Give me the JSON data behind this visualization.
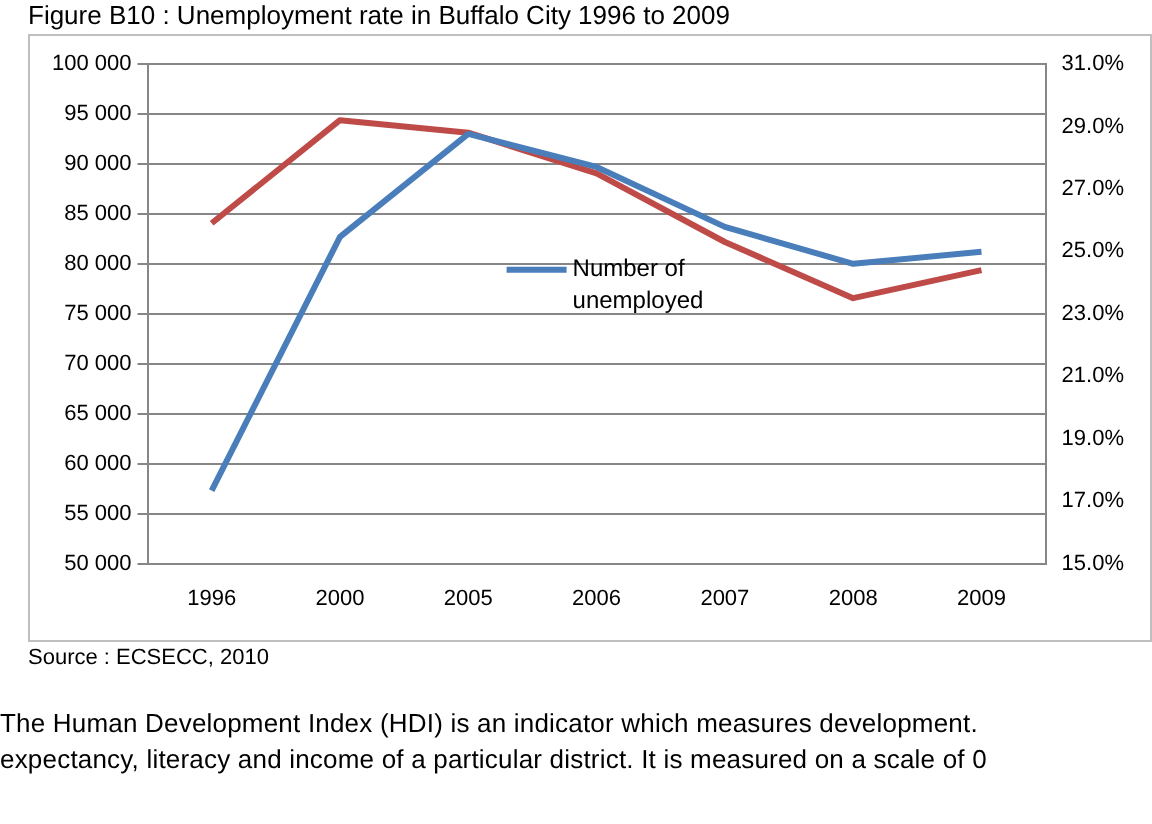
{
  "chart_data": {
    "type": "line",
    "title": "Figure B10 : Unemployment rate in Buffalo City 1996 to 2009",
    "categories": [
      "1996",
      "2000",
      "2005",
      "2006",
      "2007",
      "2008",
      "2009"
    ],
    "series": [
      {
        "name": "Number of unemployed",
        "color": "#4a7ebb",
        "values": [
          57300,
          82700,
          93000,
          89700,
          83700,
          80000,
          81200
        ]
      },
      {
        "color": "#be4b48",
        "axis": "y2",
        "values": [
          25.9,
          29.2,
          28.8,
          27.5,
          25.3,
          23.5,
          24.4
        ]
      }
    ],
    "ylim": [
      50000,
      100000
    ],
    "yticks": [
      {
        "value": 50000,
        "label": "50 000"
      },
      {
        "value": 55000,
        "label": "55 000"
      },
      {
        "value": 60000,
        "label": "60 000"
      },
      {
        "value": 65000,
        "label": "65 000"
      },
      {
        "value": 70000,
        "label": "70 000"
      },
      {
        "value": 75000,
        "label": "75 000"
      },
      {
        "value": 80000,
        "label": "80 000"
      },
      {
        "value": 85000,
        "label": "85 000"
      },
      {
        "value": 90000,
        "label": "90 000"
      },
      {
        "value": 95000,
        "label": "95 000"
      },
      {
        "value": 100000,
        "label": "100 000"
      }
    ],
    "y2lim": [
      15,
      31
    ],
    "y2ticks": [
      {
        "value": 15,
        "label": "15.0%"
      },
      {
        "value": 17,
        "label": "17.0%"
      },
      {
        "value": 19,
        "label": "19.0%"
      },
      {
        "value": 21,
        "label": "21.0%"
      },
      {
        "value": 23,
        "label": "23.0%"
      },
      {
        "value": 25,
        "label": "25.0%"
      },
      {
        "value": 27,
        "label": "27.0%"
      },
      {
        "value": 29,
        "label": "29.0%"
      },
      {
        "value": 31,
        "label": "31.0%"
      }
    ],
    "grid": "y",
    "legend": "center",
    "marker": "none",
    "line_style": "solid",
    "annotations": [
      "Source : ECSECC, 2010",
      "The Human Development Index (HDI) is an indicator which measures development.",
      "expectancy, literacy and income of a particular district.  It is measured on a scale of 0"
    ]
  }
}
